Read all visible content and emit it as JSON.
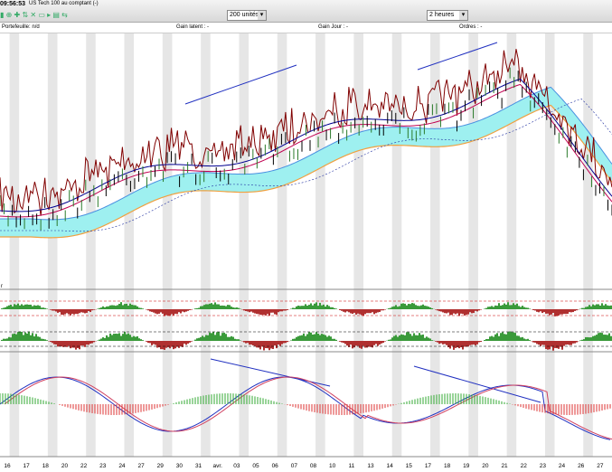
{
  "toolbar": {
    "time": "09:56:53",
    "instrument": "US Tech 100 au comptant (-)",
    "quantity": "200 unités",
    "interval": "2 heures"
  },
  "infobar": {
    "portfolio": "Portefeuille: n/d",
    "unrealized": "Gain latent : -",
    "daily": "Gain Jour : -",
    "orders": "Ordres : -"
  },
  "panel_label": "r",
  "x_labels": [
    "16",
    "17",
    "18",
    "20",
    "22",
    "23",
    "24",
    "27",
    "29",
    "30",
    "31",
    "avr.",
    "03",
    "05",
    "06",
    "07",
    "08",
    "10",
    "11",
    "13",
    "14",
    "15",
    "17",
    "18",
    "19",
    "20",
    "21",
    "22",
    "23",
    "24",
    "26",
    "27"
  ]
}
